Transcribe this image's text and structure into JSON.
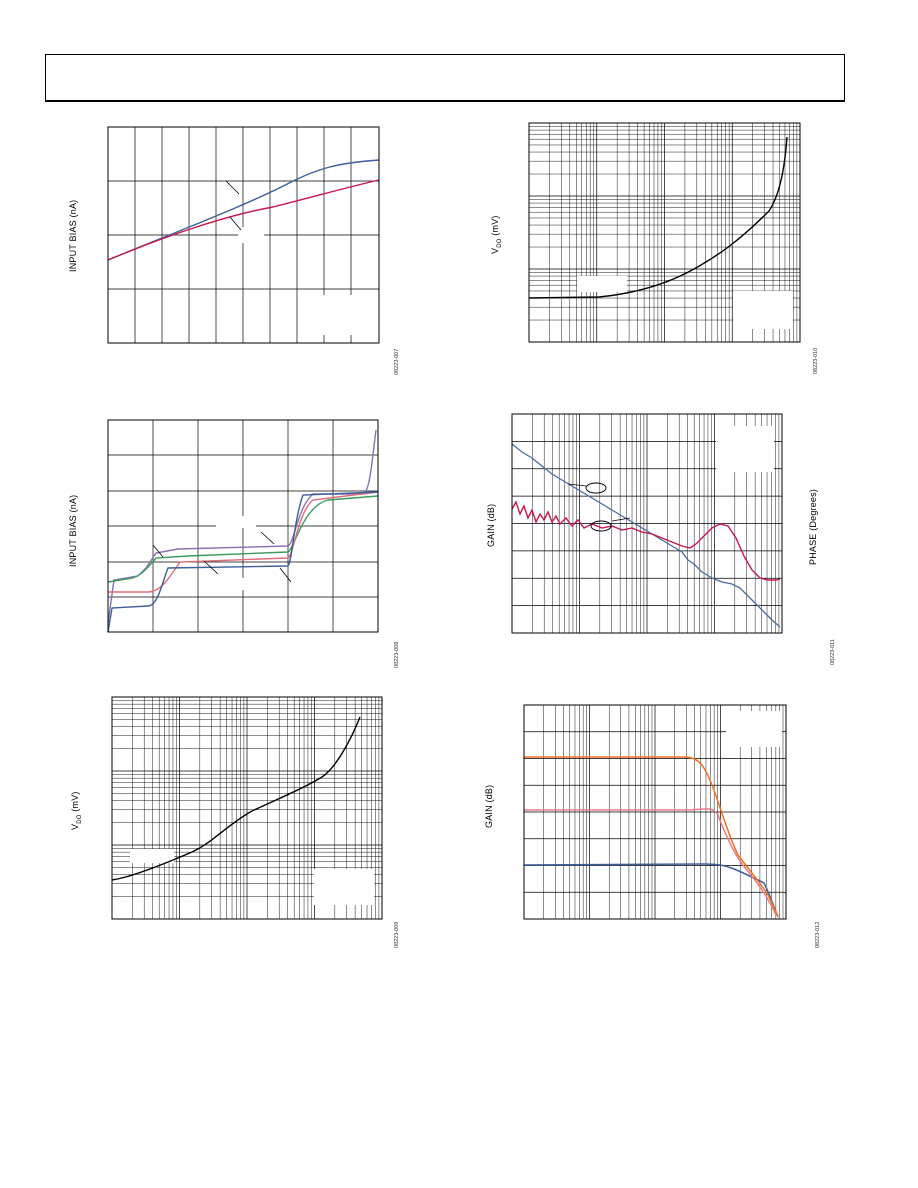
{
  "figures": [
    {
      "id": "fig1",
      "ylabel": "INPUT BIAS (nA)",
      "fig_id": "08223-007"
    },
    {
      "id": "fig2",
      "ylabel": "INPUT BIAS (nA)",
      "fig_id": "08223-008"
    },
    {
      "id": "fig3",
      "ylabel": "VDO (mV)",
      "ylabel_main": "V",
      "ylabel_sub": "DO",
      "ylabel_unit": " (mV)",
      "fig_id": "08223-009"
    },
    {
      "id": "fig4",
      "ylabel": "VDO (mV)",
      "ylabel_main": "V",
      "ylabel_sub": "DO",
      "ylabel_unit": " (mV)",
      "fig_id": "08223-010"
    },
    {
      "id": "fig5",
      "ylabel": "GAIN (dB)",
      "ylabel_right": "PHASE (Degrees)",
      "fig_id": "08223-011"
    },
    {
      "id": "fig6",
      "ylabel": "GAIN (dB)",
      "fig_id": "08223-012"
    }
  ],
  "chart_data": [
    {
      "type": "line",
      "series": [
        {
          "color": "#3e5f9a"
        },
        {
          "color": "#c8174a"
        }
      ]
    },
    {
      "type": "line",
      "series": [
        {
          "color": "#3e5f9a"
        },
        {
          "color": "#e06c7a"
        },
        {
          "color": "#3a9c5a"
        },
        {
          "color": "#8a6fb2"
        }
      ]
    },
    {
      "type": "line",
      "log_x": true,
      "log_y": true,
      "series": [
        {
          "color": "#000000"
        }
      ]
    },
    {
      "type": "line",
      "log_x": true,
      "log_y": true,
      "series": [
        {
          "color": "#000000"
        }
      ]
    },
    {
      "type": "line",
      "log_x": true,
      "series": [
        {
          "color": "#4a6aa3"
        },
        {
          "color": "#c8174a"
        }
      ]
    },
    {
      "type": "line",
      "log_x": true,
      "series": [
        {
          "color": "#f07020"
        },
        {
          "color": "#e87a88"
        },
        {
          "color": "#3e5f9a"
        }
      ]
    }
  ]
}
